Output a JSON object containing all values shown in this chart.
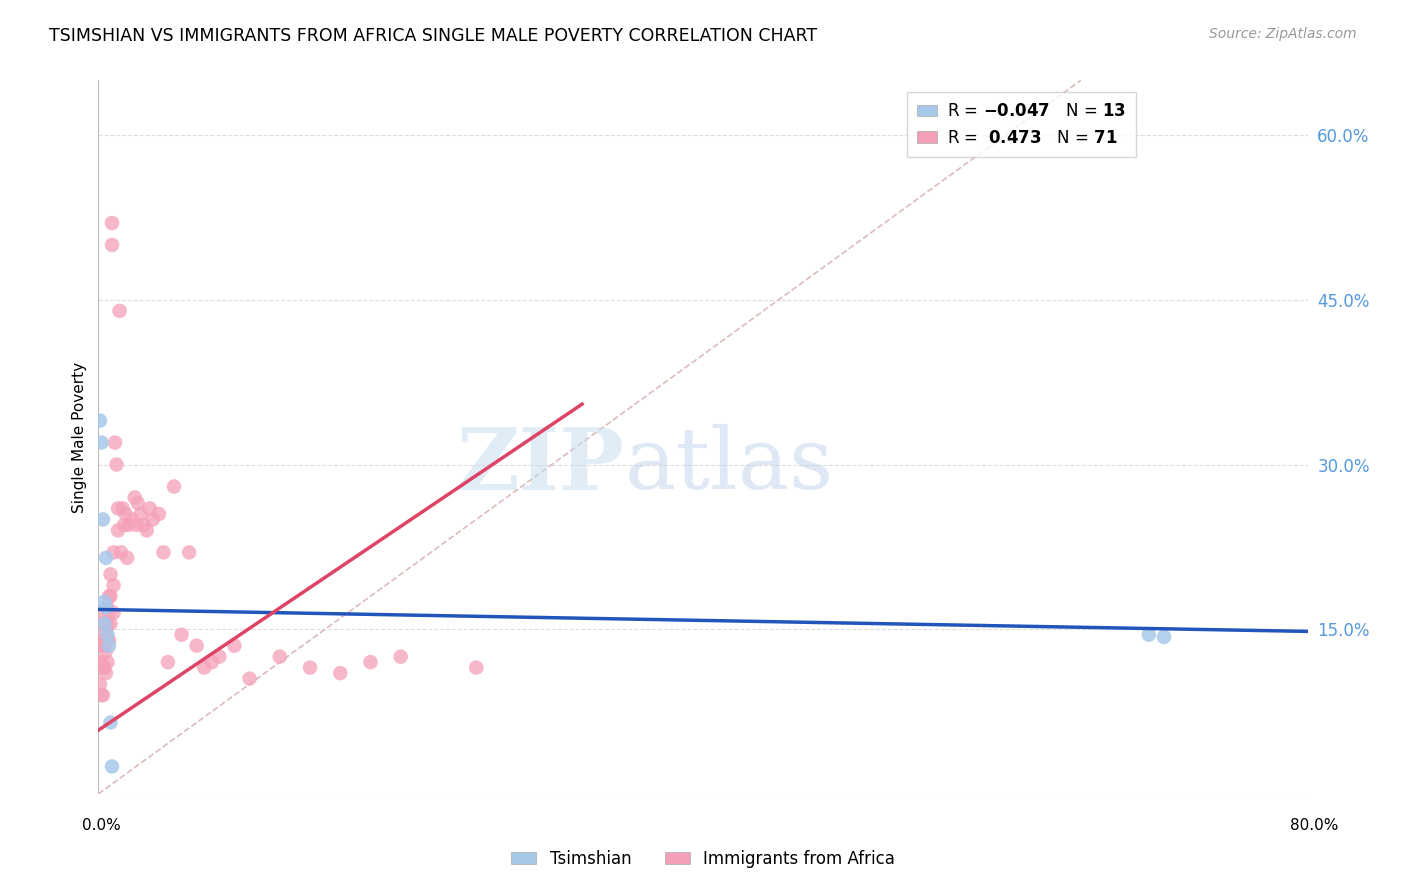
{
  "title": "TSIMSHIAN VS IMMIGRANTS FROM AFRICA SINGLE MALE POVERTY CORRELATION CHART",
  "source": "Source: ZipAtlas.com",
  "ylabel": "Single Male Poverty",
  "xlim": [
    0.0,
    0.8
  ],
  "ylim": [
    0.0,
    0.65
  ],
  "watermark_zip": "ZIP",
  "watermark_atlas": "atlas",
  "tsimshian_color": "#a8c8ea",
  "africa_color": "#f4a0b8",
  "tsimshian_line_color": "#2255bb",
  "africa_line_color": "#dd4466",
  "diag_line_color": "#ddbbbb",
  "background_color": "#ffffff",
  "grid_color": "#dddddd",
  "ts_x": [
    0.001,
    0.002,
    0.003,
    0.004,
    0.004,
    0.005,
    0.005,
    0.006,
    0.007,
    0.008,
    0.009,
    0.695,
    0.705
  ],
  "ts_y": [
    0.34,
    0.32,
    0.25,
    0.175,
    0.155,
    0.215,
    0.17,
    0.145,
    0.135,
    0.065,
    0.025,
    0.145,
    0.143
  ],
  "af_x": [
    0.001,
    0.001,
    0.001,
    0.002,
    0.002,
    0.002,
    0.002,
    0.003,
    0.003,
    0.003,
    0.003,
    0.004,
    0.004,
    0.004,
    0.005,
    0.005,
    0.005,
    0.005,
    0.006,
    0.006,
    0.006,
    0.006,
    0.007,
    0.007,
    0.007,
    0.008,
    0.008,
    0.008,
    0.009,
    0.009,
    0.01,
    0.01,
    0.01,
    0.011,
    0.012,
    0.013,
    0.013,
    0.014,
    0.015,
    0.016,
    0.017,
    0.018,
    0.019,
    0.02,
    0.022,
    0.024,
    0.025,
    0.026,
    0.028,
    0.03,
    0.032,
    0.034,
    0.036,
    0.04,
    0.043,
    0.046,
    0.05,
    0.055,
    0.06,
    0.065,
    0.07,
    0.075,
    0.08,
    0.09,
    0.1,
    0.12,
    0.14,
    0.16,
    0.18,
    0.2,
    0.25
  ],
  "af_y": [
    0.14,
    0.12,
    0.1,
    0.16,
    0.14,
    0.12,
    0.09,
    0.155,
    0.135,
    0.115,
    0.09,
    0.155,
    0.135,
    0.115,
    0.17,
    0.15,
    0.13,
    0.11,
    0.17,
    0.155,
    0.14,
    0.12,
    0.18,
    0.165,
    0.14,
    0.2,
    0.18,
    0.155,
    0.52,
    0.5,
    0.22,
    0.19,
    0.165,
    0.32,
    0.3,
    0.26,
    0.24,
    0.44,
    0.22,
    0.26,
    0.245,
    0.255,
    0.215,
    0.245,
    0.25,
    0.27,
    0.245,
    0.265,
    0.255,
    0.245,
    0.24,
    0.26,
    0.25,
    0.255,
    0.22,
    0.12,
    0.28,
    0.145,
    0.22,
    0.135,
    0.115,
    0.12,
    0.125,
    0.135,
    0.105,
    0.125,
    0.115,
    0.11,
    0.12,
    0.125,
    0.115
  ],
  "ts_line_x": [
    0.0,
    0.8
  ],
  "ts_line_y": [
    0.168,
    0.148
  ],
  "af_line_x": [
    0.0,
    0.32
  ],
  "af_line_y": [
    0.058,
    0.355
  ],
  "right_yticks": [
    0.0,
    0.15,
    0.3,
    0.45,
    0.6
  ],
  "right_yticklabels": [
    "",
    "15.0%",
    "30.0%",
    "45.0%",
    "60.0%"
  ]
}
